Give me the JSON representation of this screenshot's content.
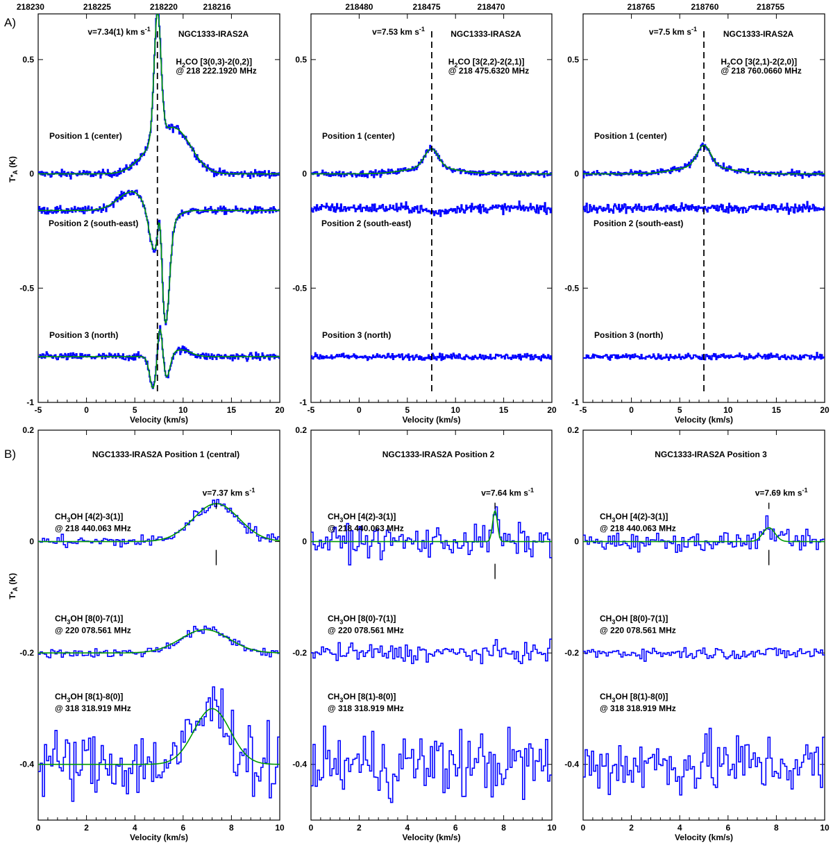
{
  "figure": {
    "label_a": "A)",
    "label_b": "B)"
  },
  "colors": {
    "spectrum": "#0000ff",
    "fit": "#009900",
    "axes": "#000000"
  },
  "chart_data": [
    {
      "id": "a1",
      "type": "line",
      "section": "A",
      "xlim": [
        -5,
        20
      ],
      "ylim": [
        -1,
        0.7
      ],
      "xticks": [
        "-5",
        "0",
        "5",
        "10",
        "15",
        "20"
      ],
      "xtick_values": [
        -5,
        0,
        5,
        10,
        15,
        20
      ],
      "yticks": [
        "-1",
        "-0.5",
        "0",
        "0.5"
      ],
      "ytick_values": [
        -1,
        -0.5,
        0,
        0.5
      ],
      "xlabel": "Velocity (km/s)",
      "ylabel": "T*A (K)",
      "top_ticks": [
        "218230",
        "218225",
        "218220",
        "218216"
      ],
      "top_tick_velocities": [
        -5.8,
        1.1,
        8.0,
        13.5
      ],
      "source": "NGC1333-IRAS2A",
      "line_html": "H<tspan dy='4' font-size='9'>2</tspan><tspan dy='-4'>CO [3(0,3)-2(0,2)]</tspan>",
      "line": "H2CO [3(0,3)-2(0,2)]",
      "freq": "@ 218 222.1920 MHz",
      "vlabel_html": "v=7.34(1) km s<tspan dy='-5' font-size='9'>-1</tspan>",
      "vlabel": "v=7.34(1) km s-1",
      "vline": 7.34,
      "vline_style": "dashed",
      "positions": [
        "Position 1 (center)",
        "Position 2 (south-east)",
        "Position 3 (north)"
      ],
      "series": [
        {
          "name": "Position 1 (center)",
          "offset": 0,
          "components": [
            {
              "a": 0.55,
              "c": 7.35,
              "w": 0.35
            },
            {
              "a": 0.09,
              "c": 6.9,
              "w": 1.6
            },
            {
              "a": 0.17,
              "c": 9.4,
              "w": 1.6
            }
          ],
          "noise": 0.012,
          "fit": true
        },
        {
          "name": "Position 2 (south-east)",
          "offset": -0.16,
          "components": [
            {
              "a": 0.09,
              "c": 5.0,
              "w": 1.6
            },
            {
              "a": -0.12,
              "c": 6.9,
              "w": 0.45
            },
            {
              "a": 0.18,
              "c": 7.6,
              "w": 0.2
            },
            {
              "a": -0.42,
              "c": 8.2,
              "w": 0.4
            },
            {
              "a": -0.1,
              "c": 7.5,
              "w": 1.2
            }
          ],
          "noise": 0.012,
          "fit": true
        },
        {
          "name": "Position 3 (north)",
          "offset": -0.8,
          "components": [
            {
              "a": -0.14,
              "c": 6.9,
              "w": 0.35
            },
            {
              "a": 0.15,
              "c": 7.6,
              "w": 0.25
            },
            {
              "a": -0.1,
              "c": 8.3,
              "w": 0.35
            },
            {
              "a": 0.03,
              "c": 9.8,
              "w": 1.0
            }
          ],
          "noise": 0.012,
          "fit": true
        }
      ]
    },
    {
      "id": "a2",
      "type": "line",
      "section": "A",
      "xlim": [
        -5,
        20
      ],
      "ylim": [
        -1,
        0.7
      ],
      "xticks": [
        "-5",
        "0",
        "5",
        "10",
        "15",
        "20"
      ],
      "xtick_values": [
        -5,
        0,
        5,
        10,
        15,
        20
      ],
      "yticks": [
        "-1",
        "-0.5",
        "0",
        "0.5"
      ],
      "ytick_values": [
        -1,
        -0.5,
        0,
        0.5
      ],
      "xlabel": "Velocity (km/s)",
      "ylabel": "",
      "top_ticks": [
        "218480",
        "218475",
        "218470"
      ],
      "top_tick_velocities": [
        0.0,
        7.0,
        13.7
      ],
      "source": "NGC1333-IRAS2A",
      "line_html": "H<tspan dy='4' font-size='9'>2</tspan><tspan dy='-4'>CO [3(2,2)-2(2,1)]</tspan>",
      "line": "H2CO [3(2,2)-2(2,1)]",
      "freq": "@ 218 475.6320 MHz",
      "vlabel_html": "v=7.53 km s<tspan dy='-5' font-size='9'>-1</tspan>",
      "vlabel": "v=7.53 km s-1",
      "vline": 7.53,
      "vline_style": "dashed",
      "positions": [
        "Position 1 (center)",
        "Position 2 (south-east)",
        "Position 3 (north)"
      ],
      "series": [
        {
          "name": "Position 1 (center)",
          "offset": 0,
          "components": [
            {
              "a": 0.08,
              "c": 7.5,
              "w": 0.7
            },
            {
              "a": 0.03,
              "c": 7.5,
              "w": 2.5
            }
          ],
          "noise": 0.01,
          "fit": true
        },
        {
          "name": "Position 2 (south-east)",
          "offset": -0.15,
          "components": [
            {
              "a": -0.02,
              "c": 8.0,
              "w": 1.0
            }
          ],
          "noise": 0.015,
          "fit": false
        },
        {
          "name": "Position 3 (north)",
          "offset": -0.8,
          "components": [],
          "noise": 0.01,
          "fit": false
        }
      ]
    },
    {
      "id": "a3",
      "type": "line",
      "section": "A",
      "xlim": [
        -5,
        20
      ],
      "ylim": [
        -1,
        0.7
      ],
      "xticks": [
        "-5",
        "0",
        "5",
        "10",
        "15",
        "20"
      ],
      "xtick_values": [
        -5,
        0,
        5,
        10,
        15,
        20
      ],
      "yticks": [
        "-1",
        "-0.5",
        "0",
        "0.5"
      ],
      "ytick_values": [
        -1,
        -0.5,
        0,
        0.5
      ],
      "xlabel": "Velocity (km/s)",
      "ylabel": "",
      "top_ticks": [
        "218765",
        "218760",
        "218755"
      ],
      "top_tick_velocities": [
        1.0,
        7.6,
        14.4
      ],
      "source": "NGC1333-IRAS2A",
      "line_html": "H<tspan dy='4' font-size='9'>2</tspan><tspan dy='-4'>CO [3(2,1)-2(2,0)]</tspan>",
      "line": "H2CO [3(2,1)-2(2,0)]",
      "freq": "@ 218 760.0660 MHz",
      "vlabel_html": "v=7.5 km s<tspan dy='-5' font-size='9'>-1</tspan>",
      "vlabel": "v=7.5 km s-1",
      "vline": 7.5,
      "vline_style": "dashed",
      "positions": [
        "Position 1 (center)",
        "Position 2 (south-east)",
        "Position 3 (north)"
      ],
      "series": [
        {
          "name": "Position 1 (center)",
          "offset": 0,
          "components": [
            {
              "a": 0.09,
              "c": 7.5,
              "w": 0.7
            },
            {
              "a": 0.035,
              "c": 7.5,
              "w": 2.6
            }
          ],
          "noise": 0.01,
          "fit": true
        },
        {
          "name": "Position 2 (south-east)",
          "offset": -0.15,
          "components": [],
          "noise": 0.015,
          "fit": false
        },
        {
          "name": "Position 3 (north)",
          "offset": -0.8,
          "components": [],
          "noise": 0.01,
          "fit": false
        }
      ]
    },
    {
      "id": "b1",
      "type": "line",
      "section": "B",
      "xlim": [
        0,
        10
      ],
      "ylim": [
        -0.5,
        0.2
      ],
      "xticks": [
        "0",
        "2",
        "4",
        "6",
        "8",
        "10"
      ],
      "xtick_values": [
        0,
        2,
        4,
        6,
        8,
        10
      ],
      "yticks": [
        "-0.4",
        "-0.2",
        "0",
        "0.2"
      ],
      "ytick_values": [
        -0.4,
        -0.2,
        0,
        0.2
      ],
      "xlabel": "Velocity (km/s)",
      "ylabel": "T*A (K)",
      "title": "NGC1333-IRAS2A   Position 1 (central)",
      "vlabel_html": "v=7.37 km s<tspan dy='-5' font-size='9'>-1</tspan>",
      "vlabel": "v=7.37 km s-1",
      "vline": 7.37,
      "vline_style": "marker",
      "labels": [
        {
          "line": "CH3OH [4(2)-3(1)]",
          "freq": "@ 218 440.063 MHz"
        },
        {
          "line": "CH3OH [8(0)-7(1)]",
          "freq": "@ 220 078.561 MHz"
        },
        {
          "line": "CH3OH [8(1)-8(0)]",
          "freq": "@ 318 318.919 MHz"
        }
      ],
      "series": [
        {
          "name": "CH3OH [4(2)-3(1)]",
          "offset": 0,
          "components": [
            {
              "a": 0.068,
              "c": 7.37,
              "w": 0.95
            }
          ],
          "noise": 0.008,
          "fit": true
        },
        {
          "name": "CH3OH [8(0)-7(1)]",
          "offset": -0.2,
          "components": [
            {
              "a": 0.042,
              "c": 6.9,
              "w": 1.0
            }
          ],
          "noise": 0.006,
          "fit": true
        },
        {
          "name": "CH3OH [8(1)-8(0)]",
          "offset": -0.4,
          "components": [
            {
              "a": 0.1,
              "c": 7.2,
              "w": 0.75
            }
          ],
          "noise": 0.045,
          "fit": true
        }
      ]
    },
    {
      "id": "b2",
      "type": "line",
      "section": "B",
      "xlim": [
        0,
        10
      ],
      "ylim": [
        -0.5,
        0.2
      ],
      "xticks": [
        "0",
        "2",
        "4",
        "6",
        "8",
        "10"
      ],
      "xtick_values": [
        0,
        2,
        4,
        6,
        8,
        10
      ],
      "yticks": [
        "-0.4",
        "-0.2",
        "0",
        "0.2"
      ],
      "ytick_values": [
        -0.4,
        -0.2,
        0,
        0.2
      ],
      "xlabel": "Velocity (km/s)",
      "ylabel": "",
      "title": "NGC1333-IRAS2A   Position 2",
      "vlabel_html": "v=7.64 km s<tspan dy='-5' font-size='9'>-1</tspan>",
      "vlabel": "v=7.64 km s-1",
      "vline": 7.64,
      "vline_style": "marker",
      "labels": [
        {
          "line": "CH3OH [4(2)-3(1)]",
          "freq": "@ 218 440.063 MHz"
        },
        {
          "line": "CH3OH [8(0)-7(1)]",
          "freq": "@ 220 078.561 MHz"
        },
        {
          "line": "CH3OH [8(1)-8(0)]",
          "freq": "@ 318 318.919 MHz"
        }
      ],
      "series": [
        {
          "name": "CH3OH [4(2)-3(1)]",
          "offset": 0,
          "components": [
            {
              "a": 0.055,
              "c": 7.64,
              "w": 0.1
            }
          ],
          "noise": 0.02,
          "fit": true
        },
        {
          "name": "CH3OH [8(0)-7(1)]",
          "offset": -0.2,
          "components": [],
          "noise": 0.012,
          "fit": false
        },
        {
          "name": "CH3OH [8(1)-8(0)]",
          "offset": -0.4,
          "components": [],
          "noise": 0.045,
          "fit": false
        }
      ]
    },
    {
      "id": "b3",
      "type": "line",
      "section": "B",
      "xlim": [
        0,
        10
      ],
      "ylim": [
        -0.5,
        0.2
      ],
      "xticks": [
        "0",
        "2",
        "4",
        "6",
        "8",
        "10"
      ],
      "xtick_values": [
        0,
        2,
        4,
        6,
        8,
        10
      ],
      "yticks": [
        "-0.4",
        "-0.2",
        "0",
        "0.2"
      ],
      "ytick_values": [
        -0.4,
        -0.2,
        0,
        0.2
      ],
      "xlabel": "Velocity (km/s)",
      "ylabel": "",
      "title": "NGC1333-IRAS2A   Position 3",
      "vlabel_html": "v=7.69 km s<tspan dy='-5' font-size='9'>-1</tspan>",
      "vlabel": "v=7.69 km s-1",
      "vline": 7.69,
      "vline_style": "marker",
      "labels": [
        {
          "line": "CH3OH [4(2)-3(1)]",
          "freq": "@ 218 440.063 MHz"
        },
        {
          "line": "CH3OH [8(0)-7(1)]",
          "freq": "@ 220 078.561 MHz"
        },
        {
          "line": "CH3OH [8(1)-8(0)]",
          "freq": "@ 318 318.919 MHz"
        }
      ],
      "series": [
        {
          "name": "CH3OH [4(2)-3(1)]",
          "offset": 0,
          "components": [
            {
              "a": 0.025,
              "c": 7.69,
              "w": 0.25
            }
          ],
          "noise": 0.012,
          "fit": true
        },
        {
          "name": "CH3OH [8(0)-7(1)]",
          "offset": -0.2,
          "components": [],
          "noise": 0.008,
          "fit": false
        },
        {
          "name": "CH3OH [8(1)-8(0)]",
          "offset": -0.4,
          "components": [],
          "noise": 0.04,
          "fit": false
        }
      ]
    }
  ]
}
